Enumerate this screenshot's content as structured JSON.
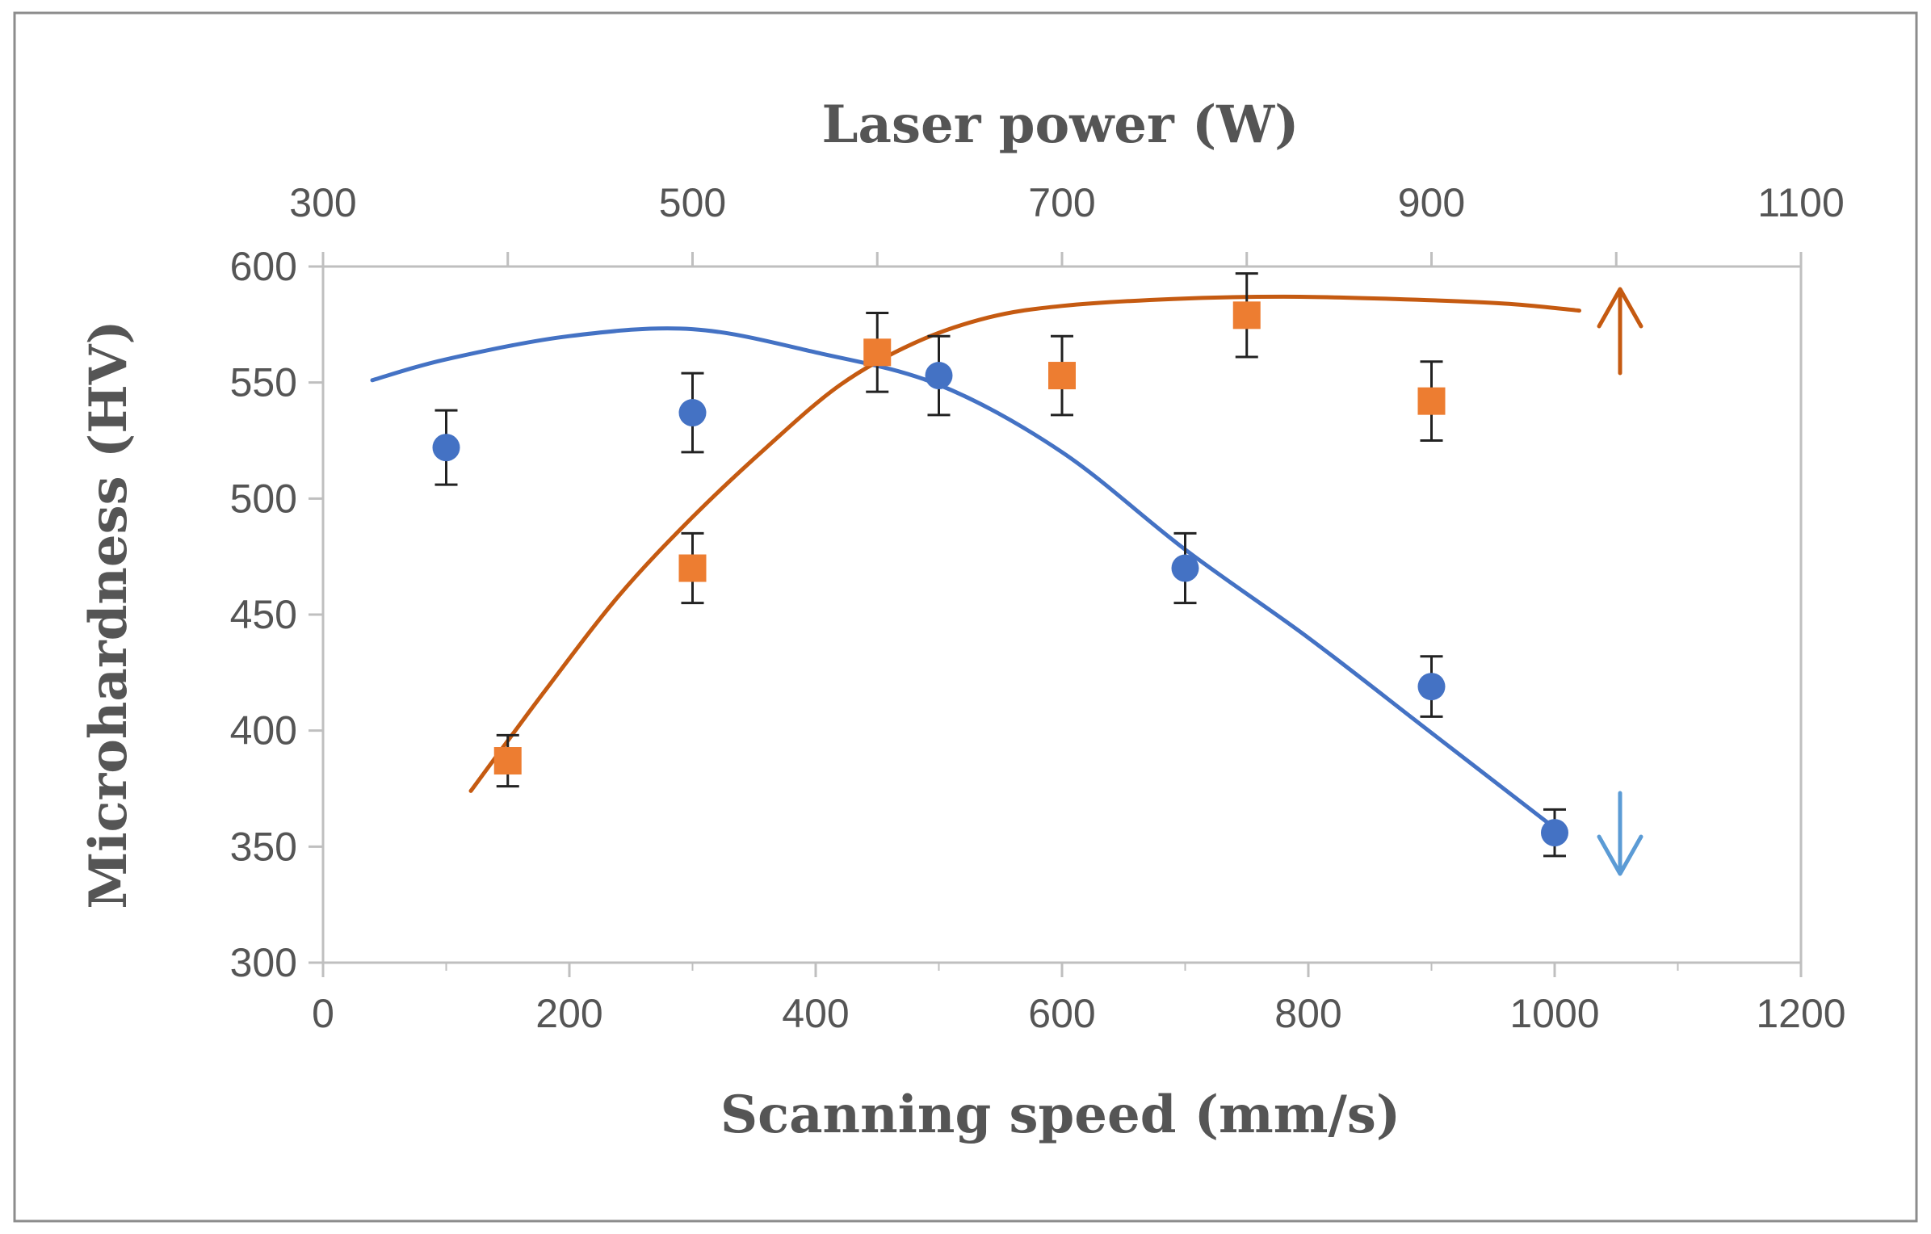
{
  "chart_data": {
    "type": "scatter",
    "title": "",
    "x_bottom": {
      "label": "Scanning speed (mm/s)",
      "range": [
        0,
        1200
      ],
      "ticks": [
        0,
        200,
        400,
        600,
        800,
        1000,
        1200
      ],
      "tick_labels": [
        "0",
        "200",
        "400",
        "600",
        "800",
        "1000",
        "1200"
      ]
    },
    "x_top": {
      "label": "Laser power (W)",
      "range": [
        300,
        1100
      ],
      "ticks": [
        300,
        500,
        700,
        900,
        1100
      ],
      "tick_labels": [
        "300",
        "500",
        "700",
        "900",
        "1100"
      ]
    },
    "y": {
      "label": "Microhardness (HV)",
      "range": [
        300,
        600
      ],
      "ticks": [
        300,
        350,
        400,
        450,
        500,
        550,
        600
      ],
      "tick_labels": [
        "300",
        "350",
        "400",
        "450",
        "500",
        "550",
        "600"
      ]
    },
    "grid": false,
    "series": [
      {
        "name": "Scanning speed",
        "axis": "bottom",
        "marker": "circle",
        "color": "#4472C4",
        "trend_color": "#4472C4",
        "points": [
          {
            "x": 100,
            "y": 522,
            "err": 16
          },
          {
            "x": 300,
            "y": 537,
            "err": 17
          },
          {
            "x": 500,
            "y": 553,
            "err": 17
          },
          {
            "x": 700,
            "y": 470,
            "err": 15
          },
          {
            "x": 900,
            "y": 419,
            "err": 13
          },
          {
            "x": 1000,
            "y": 356,
            "err": 10
          }
        ],
        "trendline": [
          [
            40,
            551
          ],
          [
            100,
            560
          ],
          [
            200,
            570
          ],
          [
            300,
            573
          ],
          [
            400,
            563
          ],
          [
            500,
            549
          ],
          [
            600,
            520
          ],
          [
            700,
            478
          ],
          [
            800,
            440
          ],
          [
            900,
            399
          ],
          [
            1000,
            358
          ]
        ]
      },
      {
        "name": "Laser power",
        "axis": "top",
        "marker": "square",
        "color": "#ED7D31",
        "trend_color": "#C55A11",
        "points": [
          {
            "x": 400,
            "y": 387,
            "err": 11
          },
          {
            "x": 500,
            "y": 470,
            "err": 15
          },
          {
            "x": 600,
            "y": 563,
            "err": 17
          },
          {
            "x": 700,
            "y": 553,
            "err": 17
          },
          {
            "x": 800,
            "y": 579,
            "err": 18
          },
          {
            "x": 900,
            "y": 542,
            "err": 17
          }
        ],
        "trendline": [
          [
            380,
            374
          ],
          [
            420,
            417
          ],
          [
            460,
            458
          ],
          [
            500,
            492
          ],
          [
            540,
            522
          ],
          [
            580,
            549
          ],
          [
            620,
            567
          ],
          [
            660,
            578
          ],
          [
            700,
            583
          ],
          [
            760,
            586
          ],
          [
            820,
            587
          ],
          [
            880,
            586
          ],
          [
            940,
            584
          ],
          [
            980,
            581
          ]
        ]
      }
    ],
    "annotations": [
      {
        "type": "arrow-up",
        "color": "#C55A11",
        "meaning": "Laser power uses top axis"
      },
      {
        "type": "arrow-down",
        "color": "#5B9BD5",
        "meaning": "Scanning speed uses bottom axis"
      }
    ]
  }
}
